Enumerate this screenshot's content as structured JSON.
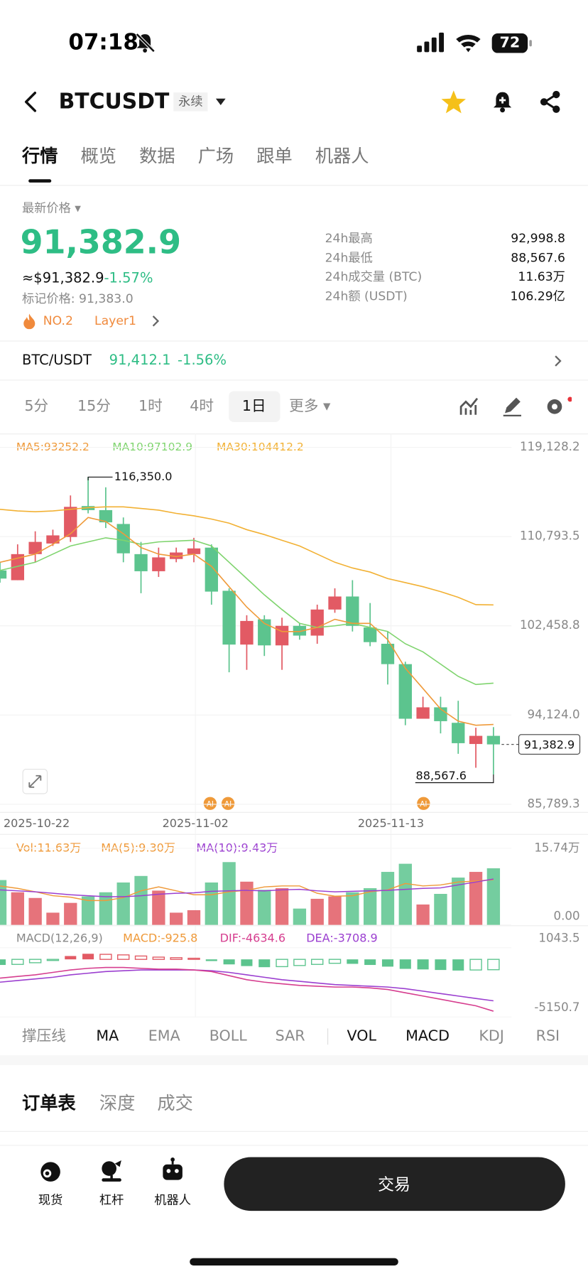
{
  "status_bar": {
    "time": "07:18",
    "battery": "72"
  },
  "header": {
    "symbol": "BTCUSDT",
    "tag": "永续"
  },
  "tabs": [
    "行情",
    "概览",
    "数据",
    "广场",
    "跟单",
    "机器人"
  ],
  "price": {
    "label": "最新价格",
    "last": "91,382.9",
    "usd": "≈$91,382.9",
    "change": "-1.57%",
    "mark": "标记价格: 91,383.0",
    "rank": "NO.2",
    "sector": "Layer1"
  },
  "stats": [
    {
      "label": "24h最高",
      "value": "92,998.8"
    },
    {
      "label": "24h最低",
      "value": "88,567.6"
    },
    {
      "label": "24h成交量 (BTC)",
      "value": "11.63万"
    },
    {
      "label": "24h额 (USDT)",
      "value": "106.29亿"
    }
  ],
  "spot": {
    "pair": "BTC/USDT",
    "price": "91,412.1",
    "change": "-1.56%"
  },
  "intervals": [
    "5分",
    "15分",
    "1时",
    "4时",
    "1日",
    "更多"
  ],
  "kline": {
    "type": "candlestick",
    "ma_labels": [
      "MA5:93252.2",
      "MA10:97102.9",
      "MA30:104412.2"
    ],
    "colors": {
      "rise": "#e25a64",
      "fall": "#5cc48e",
      "ma5": "#ef9a3a",
      "ma10": "#7fd46e",
      "ma30": "#f2b134"
    },
    "ylim": [
      85789.3,
      119128.2
    ],
    "yticks": [
      {
        "value": 119128.2,
        "label": "119,128.2"
      },
      {
        "value": 110793.5,
        "label": "110,793.5"
      },
      {
        "value": 102458.8,
        "label": "102,458.8"
      },
      {
        "value": 94124.0,
        "label": "94,124.0"
      },
      {
        "value": 85789.3,
        "label": "85,789.3"
      }
    ],
    "candles": [
      [
        107634,
        108395,
        106492,
        106873
      ],
      [
        106720,
        110070,
        106720,
        109156
      ],
      [
        109156,
        111288,
        108395,
        110298
      ],
      [
        110146,
        111440,
        109917,
        110907
      ],
      [
        110755,
        114637,
        110298,
        113571
      ],
      [
        113647,
        116350,
        112962,
        113267
      ],
      [
        113267,
        115398,
        111592,
        112125
      ],
      [
        111973,
        112582,
        108395,
        109232
      ],
      [
        109156,
        110298,
        105503,
        107558
      ],
      [
        107558,
        109765,
        107025,
        108852
      ],
      [
        108700,
        109765,
        108395,
        109309
      ],
      [
        109156,
        110679,
        108395,
        109689
      ],
      [
        109765,
        110070,
        104437,
        105655
      ],
      [
        105731,
        105959,
        98119,
        100707
      ],
      [
        100707,
        103447,
        98347,
        102914
      ],
      [
        103067,
        103447,
        99641,
        100631
      ],
      [
        100631,
        103219,
        98347,
        102458
      ],
      [
        102458,
        102686,
        101164,
        101544
      ],
      [
        101544,
        104437,
        100783,
        103980
      ],
      [
        103980,
        105959,
        103676,
        105198
      ],
      [
        105198,
        106720,
        101925,
        102458
      ],
      [
        102305,
        104589,
        100555,
        100935
      ],
      [
        100783,
        101925,
        96977,
        98880
      ],
      [
        98880,
        99108,
        93171,
        93780
      ],
      [
        93780,
        95835,
        93780,
        94846
      ],
      [
        94846,
        95835,
        92410,
        93552
      ],
      [
        93399,
        95455,
        90507,
        91496
      ],
      [
        91420,
        92943,
        89200,
        92182
      ],
      [
        92182,
        92998.8,
        88567.6,
        91382.9
      ]
    ],
    "ma5": [
      108395,
      108776,
      109156,
      110070,
      111060,
      112582,
      112201,
      111060,
      109765,
      109156,
      108928,
      109156,
      108014,
      106111,
      104208,
      102686,
      101925,
      101925,
      102305,
      103067,
      102686,
      102686,
      101164,
      98499,
      96597,
      94694,
      93552,
      93171,
      93252.2
    ],
    "ma10": [
      107634,
      108014,
      108395,
      109156,
      109917,
      110298,
      110679,
      110450,
      110070,
      110298,
      110374,
      110450,
      109917,
      108395,
      106873,
      105350,
      103980,
      102686,
      102305,
      102458,
      102686,
      102305,
      101925,
      100783,
      100022,
      98880,
      97738,
      96977,
      97102.9
    ],
    "ma30": [
      113343,
      113191,
      113115,
      113191,
      113343,
      113495,
      113571,
      113571,
      113419,
      113267,
      112962,
      112734,
      112429,
      112049,
      111440,
      110983,
      110450,
      109917,
      109156,
      108395,
      107862,
      107482,
      106873,
      106492,
      106111,
      105655,
      105122,
      104437,
      104412.2
    ],
    "high_label": {
      "value": 116350,
      "label": "116,350.0"
    },
    "low_label": {
      "value": 88567.6,
      "label": "88,567.6"
    },
    "last_label": {
      "value": 91382.9,
      "label": "91,382.9"
    },
    "dates": [
      "2025-10-22",
      "2025-11-02",
      "2025-11-13"
    ]
  },
  "volume": {
    "labels": [
      "Vol:11.63万",
      "MA(5):9.30万",
      "MA(10):9.43万"
    ],
    "colors": {
      "ma5": "#ef9a3a",
      "ma10": "#9b3fd0"
    },
    "ylim": [
      0,
      15.74
    ],
    "yticks": [
      {
        "value": 15.74,
        "label": "15.74万"
      },
      {
        "value": 0,
        "label": "0.00"
      }
    ],
    "values": [
      9.21,
      6.7,
      5.53,
      2.51,
      4.52,
      5.86,
      6.7,
      8.71,
      10.05,
      7.04,
      2.51,
      3.02,
      8.71,
      12.9,
      8.88,
      7.2,
      7.54,
      3.35,
      5.36,
      5.86,
      6.7,
      7.54,
      10.89,
      12.56,
      4.19,
      6.37,
      9.72,
      10.89,
      11.63
    ],
    "ma5": [
      8.0,
      7.5,
      6.8,
      6.0,
      5.7,
      5.0,
      5.0,
      5.6,
      7.0,
      7.8,
      7.0,
      6.2,
      6.2,
      6.8,
      7.1,
      7.8,
      8.0,
      8.0,
      6.5,
      5.9,
      6.0,
      6.8,
      7.2,
      8.5,
      8.0,
      8.2,
      8.8,
      9.0,
      9.3
    ],
    "ma10": [
      7.2,
      7.0,
      6.8,
      6.5,
      6.2,
      6.0,
      5.8,
      5.8,
      6.0,
      6.3,
      6.5,
      6.6,
      6.9,
      7.0,
      7.1,
      7.0,
      7.2,
      7.3,
      7.0,
      6.8,
      6.9,
      7.0,
      7.1,
      7.3,
      7.5,
      7.6,
      8.2,
      8.8,
      9.43
    ]
  },
  "macd": {
    "labels": [
      "MACD(12,26,9)",
      "MACD:-925.8",
      "DIF:-4634.6",
      "DEA:-3708.9"
    ],
    "colors": {
      "dif": "#d63e8f",
      "dea": "#9b3fd0"
    },
    "ylim": [
      -5150.7,
      1043.5
    ],
    "yticks": [
      1043.5,
      -5150.7
    ],
    "hist": [
      -500,
      -450,
      -300,
      -100,
      300,
      500,
      450,
      400,
      300,
      200,
      150,
      100,
      -150,
      -450,
      -600,
      -700,
      -650,
      -550,
      -450,
      -350,
      -400,
      -500,
      -650,
      -850,
      -900,
      -950,
      -1000,
      -950,
      -925.8
    ],
    "dif": [
      -1677,
      -1531,
      -1385,
      -1166,
      -948,
      -802,
      -729,
      -729,
      -802,
      -875,
      -875,
      -948,
      -1094,
      -1458,
      -1823,
      -2041,
      -2187,
      -2333,
      -2406,
      -2479,
      -2479,
      -2552,
      -2697,
      -2989,
      -3281,
      -3572,
      -3864,
      -4155,
      -4634.6
    ],
    "dea": [
      -2041,
      -1895,
      -1750,
      -1604,
      -1385,
      -1239,
      -1094,
      -1021,
      -948,
      -948,
      -948,
      -948,
      -1021,
      -1166,
      -1385,
      -1604,
      -1823,
      -1968,
      -2114,
      -2260,
      -2333,
      -2406,
      -2479,
      -2624,
      -2843,
      -3062,
      -3281,
      -3499,
      -3708.9
    ]
  },
  "indicators": [
    "撑压线",
    "MA",
    "EMA",
    "BOLL",
    "SAR",
    "VOL",
    "MACD",
    "KDJ",
    "RSI"
  ],
  "book_tabs": [
    "订单表",
    "深度",
    "成交"
  ],
  "bottom_nav": [
    "现货",
    "杠杆",
    "机器人"
  ],
  "trade_button": "交易"
}
